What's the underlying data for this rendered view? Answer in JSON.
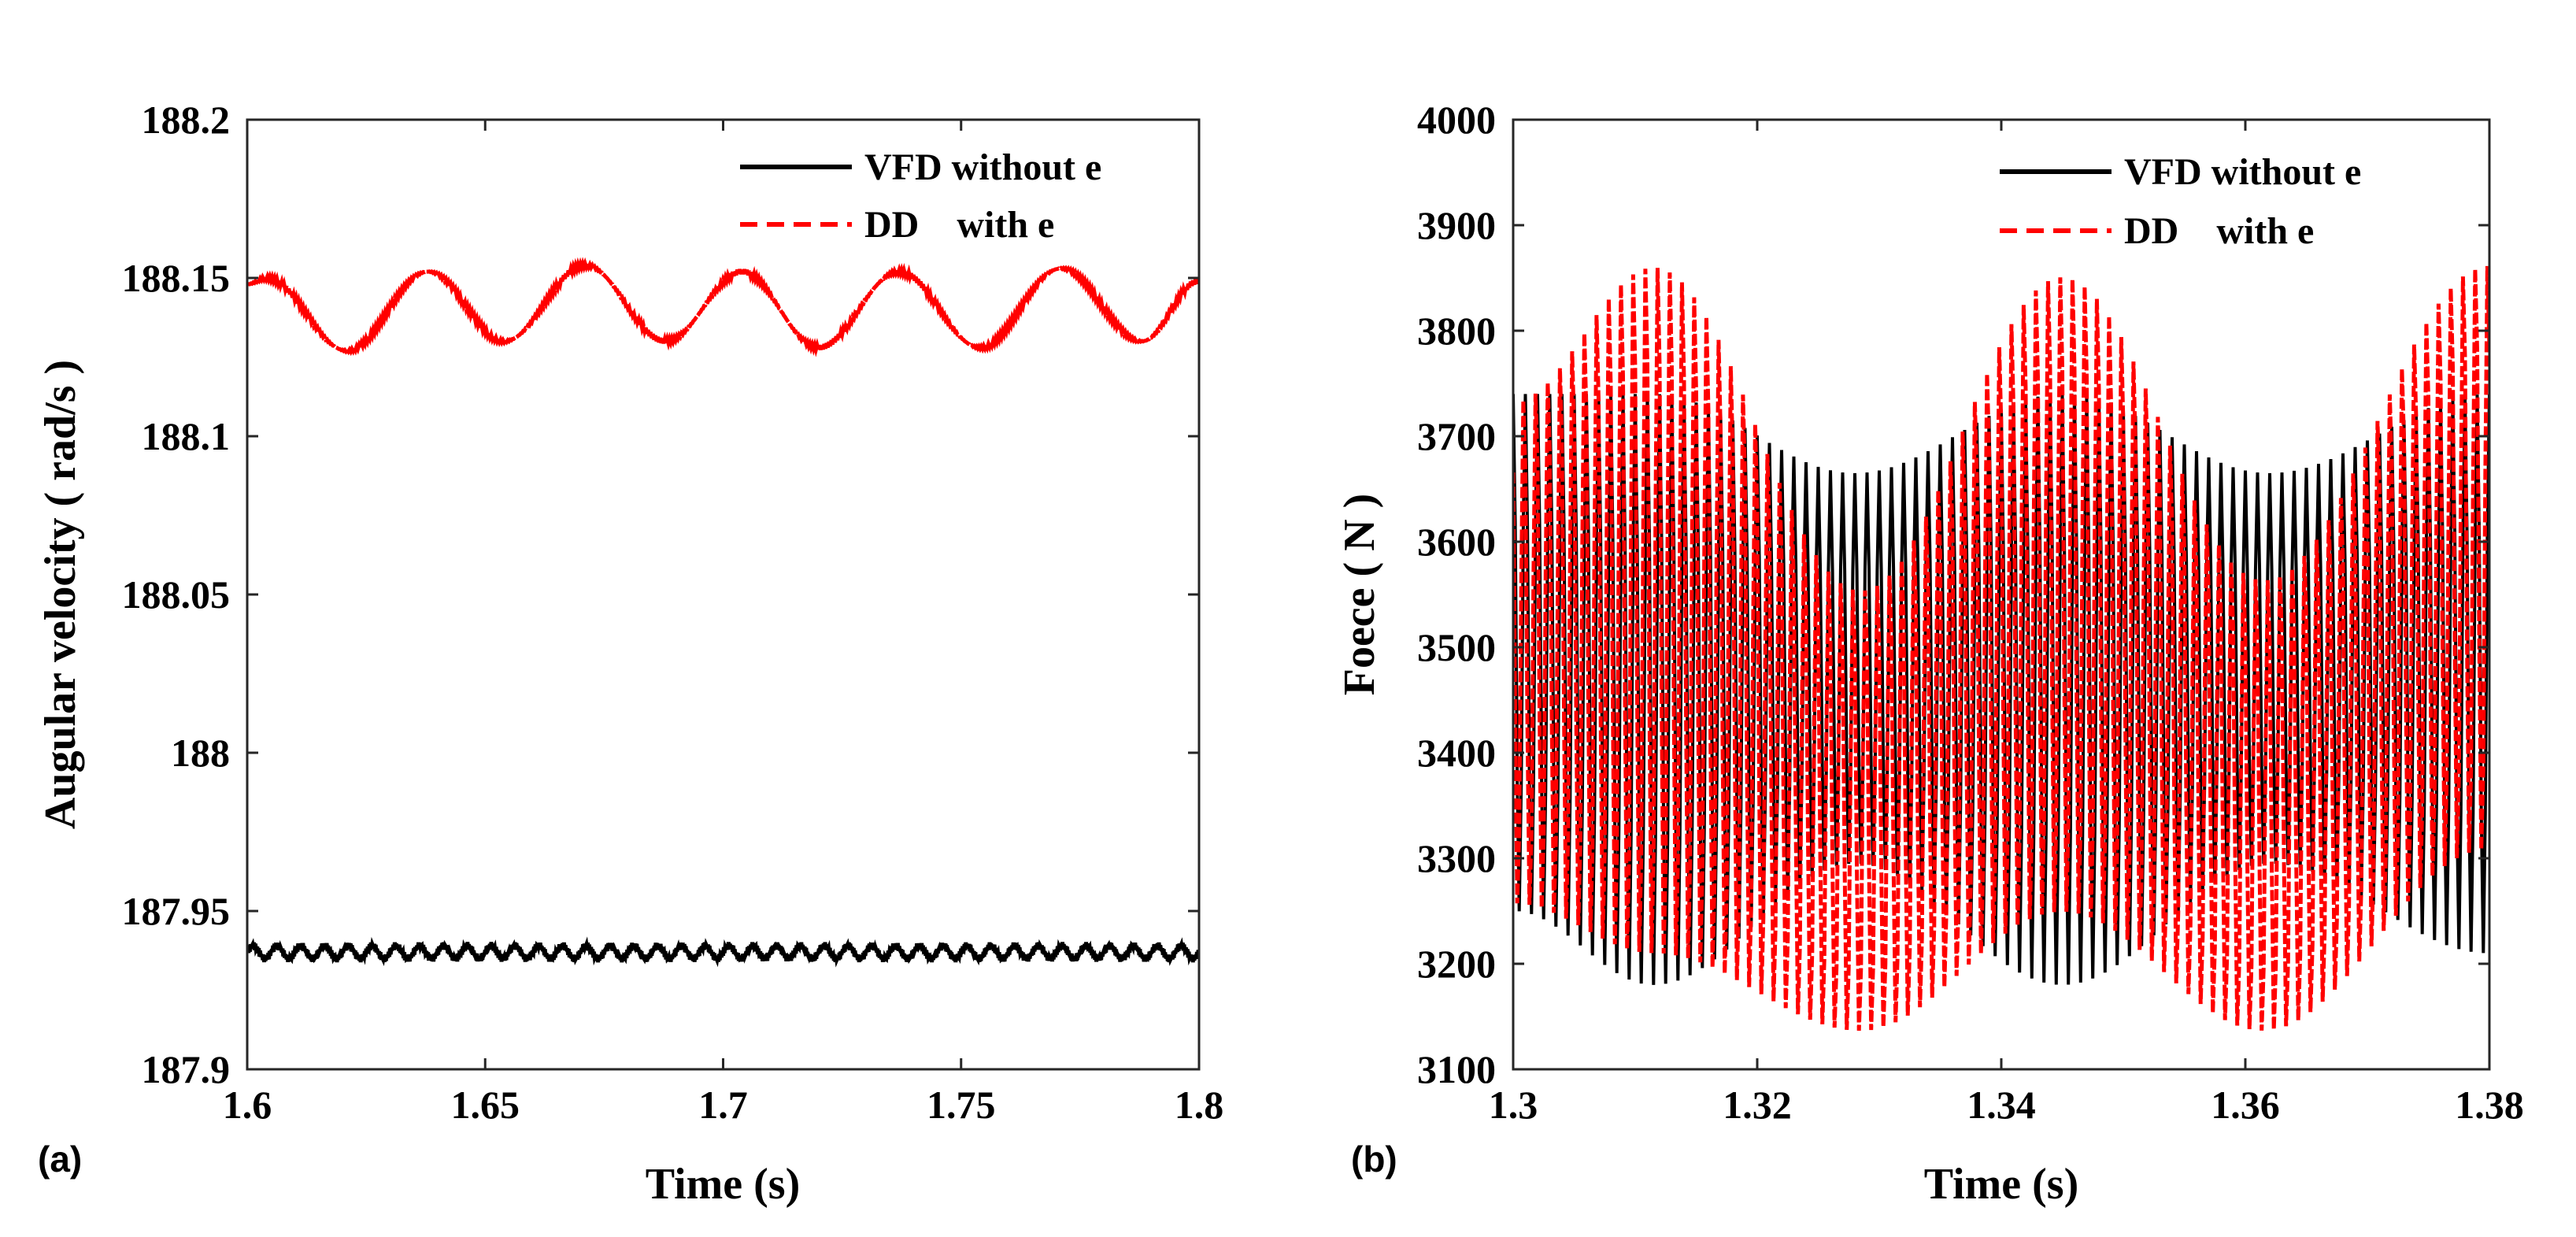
{
  "chart_data": [
    {
      "panel_label": "(a)",
      "type": "line",
      "title": "",
      "xlabel": "Time (s)",
      "ylabel": "Augular velocity ( rad/s )",
      "xlim": [
        1.6,
        1.8
      ],
      "ylim": [
        187.9,
        188.2
      ],
      "xticks": [
        "1.6",
        "1.65",
        "1.7",
        "1.75",
        "1.8"
      ],
      "yticks": [
        "187.9",
        "187.95",
        "188",
        "188.05",
        "188.1",
        "188.15",
        "188.2"
      ],
      "grid": false,
      "legend_position": "top-right",
      "series": [
        {
          "name": "VFD without e",
          "legend_text": "VFD without e",
          "color": "#000000",
          "style": "solid",
          "mean": 187.937,
          "oscillation_amplitude": 0.002,
          "oscillation_period": 0.005,
          "x": [
            1.6,
            1.8
          ],
          "y": [
            187.937,
            187.937
          ]
        },
        {
          "name": "DD with e",
          "legend_text": "DD    with e",
          "color": "#ff0000",
          "style": "dashed",
          "x": [
            1.6,
            1.604,
            1.621,
            1.638,
            1.654,
            1.671,
            1.688,
            1.704,
            1.72,
            1.737,
            1.754,
            1.771,
            1.788,
            1.8
          ],
          "y": [
            188.148,
            188.15,
            188.127,
            188.152,
            188.13,
            188.154,
            188.13,
            188.152,
            188.128,
            188.152,
            188.128,
            188.153,
            188.13,
            188.149
          ]
        }
      ]
    },
    {
      "panel_label": "(b)",
      "type": "line",
      "title": "",
      "xlabel": "Time (s)",
      "ylabel": "Foece ( N )",
      "xlim": [
        1.3,
        1.38
      ],
      "ylim": [
        3100,
        4000
      ],
      "xticks": [
        "1.3",
        "1.32",
        "1.34",
        "1.36",
        "1.38"
      ],
      "yticks": [
        "3100",
        "3200",
        "3300",
        "3400",
        "3500",
        "3600",
        "3700",
        "3800",
        "3900",
        "4000"
      ],
      "grid": false,
      "legend_position": "top-right",
      "series": [
        {
          "name": "VFD without e",
          "legend_text": "VFD without e",
          "color": "#000000",
          "style": "solid",
          "oscillation_period": 0.001,
          "envelope_period": 0.0335,
          "envelope_phase": 1.3115,
          "x": [
            1.3,
            1.3115,
            1.328,
            1.345,
            1.362,
            1.38
          ],
          "max": [
            3740,
            3740,
            3665,
            3740,
            3665,
            3740
          ],
          "min": [
            3250,
            3180,
            3295,
            3180,
            3295,
            3210
          ]
        },
        {
          "name": "DD with e",
          "legend_text": "DD    with e",
          "color": "#ff0000",
          "style": "dashed",
          "oscillation_period": 0.001,
          "envelope_period": 0.0335,
          "envelope_phase": 1.3115,
          "x": [
            1.3,
            1.3115,
            1.3285,
            1.345,
            1.3615,
            1.38
          ],
          "max": [
            3740,
            3870,
            3560,
            3860,
            3570,
            3870
          ],
          "min": [
            3250,
            3200,
            3130,
            3240,
            3130,
            3300
          ]
        }
      ]
    }
  ]
}
